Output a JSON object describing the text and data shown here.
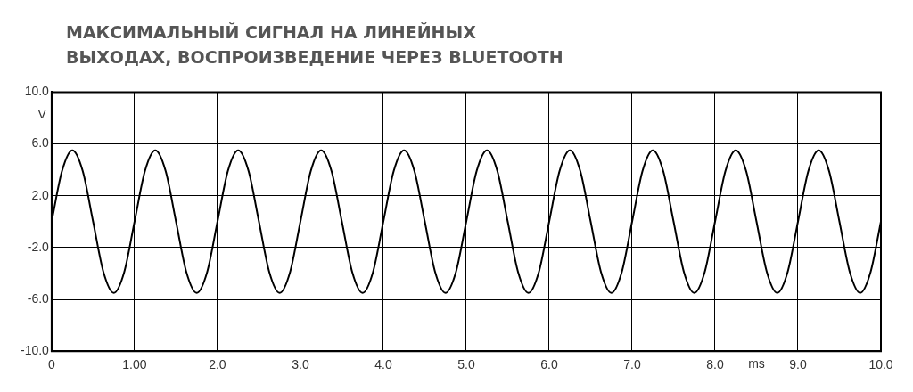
{
  "chart_data": {
    "type": "line",
    "title": "МАКСИМАЛЬНЫЙ СИГНАЛ НА ЛИНЕЙНЫХ ВЫХОДАХ, ВОСПРОИЗВЕДЕНИЕ ЧЕРЕЗ BLUETOOTH",
    "xlabel": "ms",
    "ylabel": "V",
    "x": [
      0,
      0.125,
      0.25,
      0.375,
      0.5,
      0.625,
      0.75,
      0.875,
      1,
      1.125,
      1.25,
      1.375,
      1.5,
      1.625,
      1.75,
      1.875,
      2,
      2.125,
      2.25,
      2.375,
      2.5,
      2.625,
      2.75,
      2.875,
      3,
      3.125,
      3.25,
      3.375,
      3.5,
      3.625,
      3.75,
      3.875,
      4,
      4.125,
      4.25,
      4.375,
      4.5,
      4.625,
      4.75,
      4.875,
      5,
      5.125,
      5.25,
      5.375,
      5.5,
      5.625,
      5.75,
      5.875,
      6,
      6.125,
      6.25,
      6.375,
      6.5,
      6.625,
      6.75,
      6.875,
      7,
      7.125,
      7.25,
      7.375,
      7.5,
      7.625,
      7.75,
      7.875,
      8,
      8.125,
      8.25,
      8.375,
      8.5,
      8.625,
      8.75,
      8.875,
      9,
      9.125,
      9.25,
      9.375,
      9.5,
      9.625,
      9.75,
      9.875,
      10
    ],
    "series": [
      {
        "color": "#000000",
        "values": [
          0,
          3.9,
          5.5,
          3.9,
          0,
          -3.9,
          -5.5,
          -3.9,
          0,
          3.9,
          5.5,
          3.9,
          0,
          -3.9,
          -5.5,
          -3.9,
          0,
          3.9,
          5.5,
          3.9,
          0,
          -3.9,
          -5.5,
          -3.9,
          0,
          3.9,
          5.5,
          3.9,
          0,
          -3.9,
          -5.5,
          -3.9,
          0,
          3.9,
          5.5,
          3.9,
          0,
          -3.9,
          -5.5,
          -3.9,
          0,
          3.9,
          5.5,
          3.9,
          0,
          -3.9,
          -5.5,
          -3.9,
          0,
          3.9,
          5.5,
          3.9,
          0,
          -3.9,
          -5.5,
          -3.9,
          0,
          3.9,
          5.5,
          3.9,
          0,
          -3.9,
          -5.5,
          -3.9,
          0,
          3.9,
          5.5,
          3.9,
          0,
          -3.9,
          -5.5,
          -3.9,
          0,
          3.9,
          5.5,
          3.9,
          0,
          -3.9,
          -5.5,
          -3.9,
          0
        ]
      }
    ],
    "xlim": [
      0,
      10
    ],
    "xticks": [
      0,
      {
        "value": 1,
        "label": "1.00"
      },
      {
        "value": 2,
        "label": "2.0"
      },
      {
        "value": 3,
        "label": "3.0"
      },
      {
        "value": 4,
        "label": "4.0"
      },
      {
        "value": 5,
        "label": "5.0"
      },
      {
        "value": 6,
        "label": "6.0"
      },
      {
        "value": 7,
        "label": "7.0"
      },
      {
        "value": 8,
        "label": "8.0"
      },
      {
        "value": 9,
        "label": "9.0"
      },
      {
        "value": 10,
        "label": "10.0"
      }
    ],
    "ylim": [
      -10,
      10
    ],
    "yticks": [
      {
        "value": -10,
        "label": "-10.0"
      },
      {
        "value": -6,
        "label": "-6.0"
      },
      {
        "value": -2,
        "label": "-2.0"
      },
      {
        "value": 2,
        "label": "2.0"
      },
      {
        "value": 6,
        "label": "6.0"
      },
      {
        "value": 10,
        "label": "10.0"
      }
    ],
    "grid": true,
    "legend": false,
    "marker": "none",
    "line_style": "solid"
  }
}
